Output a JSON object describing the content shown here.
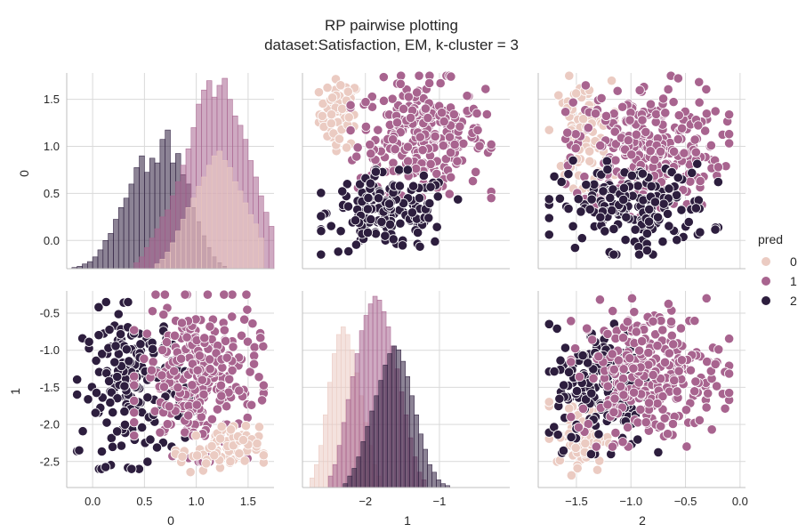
{
  "title_line1": "RP pairwise plotting",
  "title_line2": "dataset:Satisfaction, EM, k-cluster = 3",
  "legend": {
    "title": "pred",
    "entries": [
      "0",
      "1",
      "2"
    ]
  },
  "colors": {
    "pred_0": "#ebcbc2",
    "pred_1": "#a8648f",
    "pred_2": "#2d1e3e",
    "grid": "#d9d9d9",
    "spine": "#bfbfbf",
    "text": "#262626"
  },
  "axis_labels": {
    "var0": "0",
    "var1": "1",
    "var2": "2"
  },
  "chart_data": [
    {
      "type": "bar",
      "panel": "row0-col0",
      "diagonal_histogram": true,
      "variable": "0",
      "xlim": [
        -0.25,
        1.75
      ],
      "ylim": [
        -0.3,
        1.78
      ],
      "yticks": [
        0.0,
        0.5,
        1.0,
        1.5
      ],
      "series": [
        {
          "name": "2",
          "bin_start": -0.2,
          "bin_width": 0.05,
          "values": [
            0.01,
            0.02,
            0.04,
            0.06,
            0.1,
            0.16,
            0.24,
            0.3,
            0.42,
            0.52,
            0.6,
            0.72,
            0.86,
            0.96,
            0.82,
            0.94,
            0.9,
            1.1,
            1.18,
            0.9,
            0.98,
            0.8,
            0.72,
            0.52,
            0.4,
            0.28,
            0.18,
            0.1,
            0.05,
            0.02
          ]
        },
        {
          "name": "1",
          "bin_start": 0.4,
          "bin_width": 0.05,
          "values": [
            0.05,
            0.1,
            0.18,
            0.26,
            0.34,
            0.44,
            0.5,
            0.62,
            0.74,
            0.88,
            1.02,
            1.2,
            1.4,
            1.52,
            1.6,
            1.46,
            1.56,
            1.62,
            1.44,
            1.3,
            1.22,
            1.1,
            0.92,
            0.78,
            0.62,
            0.48,
            0.36
          ]
        },
        {
          "name": "0",
          "bin_start": 0.6,
          "bin_width": 0.05,
          "values": [
            0.04,
            0.08,
            0.14,
            0.22,
            0.32,
            0.42,
            0.52,
            0.6,
            0.7,
            0.78,
            0.88,
            0.96,
            1.0,
            0.92,
            0.86,
            0.74,
            0.66,
            0.56,
            0.46,
            0.38,
            0.26
          ]
        }
      ]
    },
    {
      "type": "scatter",
      "panel": "row0-col1",
      "x_variable": "1",
      "y_variable": "0",
      "xlim": [
        -2.85,
        -0.05
      ],
      "ylim": [
        -0.3,
        1.78
      ],
      "clusters": [
        {
          "name": "0",
          "x_range": [
            -2.65,
            -2.05
          ],
          "y_range": [
            0.95,
            1.75
          ],
          "approx_points": 120
        },
        {
          "name": "1",
          "x_range": [
            -2.2,
            -0.3
          ],
          "y_range": [
            0.45,
            1.75
          ],
          "approx_points": 500
        },
        {
          "name": "2",
          "x_range": [
            -2.6,
            -0.75
          ],
          "y_range": [
            -0.15,
            0.75
          ],
          "approx_points": 300
        }
      ]
    },
    {
      "type": "scatter",
      "panel": "row0-col2",
      "x_variable": "2",
      "y_variable": "0",
      "xlim": [
        -1.85,
        0.05
      ],
      "ylim": [
        -0.3,
        1.78
      ],
      "clusters": [
        {
          "name": "0",
          "x_range": [
            -1.75,
            -1.15
          ],
          "y_range": [
            0.55,
            1.75
          ],
          "approx_points": 150
        },
        {
          "name": "1",
          "x_range": [
            -1.6,
            -0.1
          ],
          "y_range": [
            0.25,
            1.75
          ],
          "approx_points": 500
        },
        {
          "name": "2",
          "x_range": [
            -1.75,
            -0.2
          ],
          "y_range": [
            -0.15,
            0.85
          ],
          "approx_points": 320
        }
      ]
    },
    {
      "type": "scatter",
      "panel": "row1-col0",
      "x_variable": "0",
      "y_variable": "1",
      "xlim": [
        -0.25,
        1.75
      ],
      "ylim": [
        -2.85,
        -0.2
      ],
      "yticks": [
        -0.5,
        -1.0,
        -1.5,
        -2.0,
        -2.5
      ],
      "xticks": [
        0.0,
        0.5,
        1.0,
        1.5
      ],
      "clusters": [
        {
          "name": "2",
          "x_range": [
            -0.15,
            0.95
          ],
          "y_range": [
            -2.6,
            -0.35
          ],
          "approx_points": 320
        },
        {
          "name": "1",
          "x_range": [
            0.4,
            1.65
          ],
          "y_range": [
            -2.5,
            -0.25
          ],
          "approx_points": 500
        },
        {
          "name": "0",
          "x_range": [
            0.8,
            1.65
          ],
          "y_range": [
            -2.7,
            -2.0
          ],
          "approx_points": 130
        }
      ]
    },
    {
      "type": "bar",
      "panel": "row1-col1",
      "diagonal_histogram": true,
      "variable": "1",
      "xlim": [
        -2.85,
        -0.05
      ],
      "xticks": [
        -2,
        -1
      ],
      "series": [
        {
          "name": "0",
          "bin_start": -2.75,
          "bin_width": 0.06,
          "values": [
            0.05,
            0.12,
            0.22,
            0.38,
            0.55,
            0.7,
            0.8,
            0.84,
            0.8,
            0.72,
            0.6,
            0.48,
            0.34,
            0.22,
            0.12,
            0.06
          ]
        },
        {
          "name": "1",
          "bin_start": -2.5,
          "bin_width": 0.06,
          "values": [
            0.06,
            0.12,
            0.22,
            0.34,
            0.46,
            0.58,
            0.7,
            0.82,
            0.9,
            0.96,
            1.0,
            0.98,
            0.92,
            0.84,
            0.74,
            0.62,
            0.5,
            0.38,
            0.26,
            0.16,
            0.08,
            0.04
          ]
        },
        {
          "name": "2",
          "bin_start": -2.3,
          "bin_width": 0.06,
          "values": [
            0.02,
            0.06,
            0.1,
            0.16,
            0.24,
            0.32,
            0.4,
            0.48,
            0.56,
            0.64,
            0.7,
            0.74,
            0.72,
            0.66,
            0.58,
            0.48,
            0.38,
            0.28,
            0.2,
            0.12,
            0.08,
            0.04,
            0.02,
            0.01
          ]
        }
      ]
    },
    {
      "type": "scatter",
      "panel": "row1-col2",
      "x_variable": "2",
      "y_variable": "1",
      "xlim": [
        -1.85,
        0.05
      ],
      "ylim": [
        -2.85,
        -0.2
      ],
      "xticks": [
        -1.5,
        -1.0,
        -0.5,
        0.0
      ],
      "clusters": [
        {
          "name": "0",
          "x_range": [
            -1.75,
            -1.2
          ],
          "y_range": [
            -2.7,
            -1.6
          ],
          "approx_points": 130
        },
        {
          "name": "2",
          "x_range": [
            -1.75,
            -0.75
          ],
          "y_range": [
            -2.4,
            -0.6
          ],
          "approx_points": 320
        },
        {
          "name": "1",
          "x_range": [
            -1.55,
            -0.1
          ],
          "y_range": [
            -2.3,
            -0.3
          ],
          "approx_points": 500
        }
      ]
    }
  ]
}
